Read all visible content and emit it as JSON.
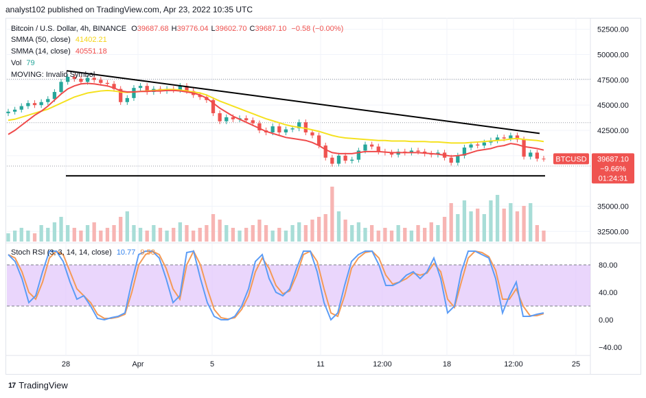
{
  "header": {
    "text": "analyst102 published on TradingView.com, Apr 23, 2022 10:35 UTC"
  },
  "legend": {
    "symbol": "Bitcoin / U.S. Dollar, 4h, BINANCE",
    "ohlc": [
      {
        "key": "O",
        "val": "39687.68"
      },
      {
        "key": "H",
        "val": "39776.04"
      },
      {
        "key": "L",
        "val": "39602.70"
      },
      {
        "key": "C",
        "val": "39687.10"
      }
    ],
    "change": "−0.58 (−0.00%)",
    "smma50_label": "SMMA (50, close)",
    "smma50_value": "41402.21",
    "smma14_label": "SMMA (14, close)",
    "smma14_value": "40551.18",
    "vol_label": "Vol",
    "vol_value": "79",
    "moving_label": "MOVING: Invalid Symbol"
  },
  "price_badge": {
    "symbol": "BTCUSD",
    "price": "39687.10",
    "change": "−9.66%",
    "countdown": "01:24:31"
  },
  "stoch": {
    "label": "Stoch RSI (3, 3, 14, 14, close)",
    "k_value": "10.77",
    "d_value": "9.58"
  },
  "colors": {
    "up": "#26a69a",
    "down": "#ef5350",
    "smma50": "#f5e11f",
    "smma14": "#ef4a4a",
    "k": "#5b9cf6",
    "d": "#f49a56",
    "band": "#e1c4fb",
    "trend": "#000000"
  },
  "footer": {
    "brand": "TradingView"
  },
  "chart_data": {
    "type": "candlestick",
    "symbol": "BTCUSD",
    "timeframe": "4h",
    "price_axis": {
      "labels": [
        "52500.00",
        "50000.00",
        "47500.00",
        "45000.00",
        "42500.00",
        "40000.00",
        "35000.00",
        "32500.00"
      ],
      "range": [
        31500,
        53500
      ]
    },
    "time_axis": {
      "labels": [
        "28",
        "Apr",
        "5",
        "11",
        "12:00",
        "18",
        "12:00",
        "25"
      ]
    },
    "closes": [
      44350,
      44550,
      44900,
      45200,
      45000,
      45300,
      45600,
      46300,
      47300,
      47800,
      47600,
      47300,
      47700,
      47500,
      47200,
      47100,
      46600,
      45300,
      45700,
      46700,
      46900,
      46300,
      46600,
      46400,
      46600,
      46500,
      46900,
      46400,
      46000,
      45800,
      45500,
      44200,
      43400,
      43800,
      43600,
      43700,
      43500,
      43200,
      42500,
      42300,
      42900,
      42300,
      42600,
      42700,
      43300,
      42300,
      42000,
      41000,
      39800,
      39200,
      40000,
      39500,
      39600,
      40500,
      41100,
      40900,
      40400,
      40300,
      40100,
      40400,
      40300,
      40500,
      40400,
      40200,
      40100,
      40300,
      39800,
      39300,
      40000,
      40800,
      41100,
      41000,
      41300,
      41500,
      41800,
      41700,
      42000,
      41600,
      39900,
      40300,
      39700,
      39690
    ],
    "volume_relative": [
      0.15,
      0.2,
      0.25,
      0.2,
      0.15,
      0.3,
      0.25,
      0.35,
      0.45,
      0.3,
      0.25,
      0.2,
      0.3,
      0.35,
      0.2,
      0.25,
      0.3,
      0.45,
      0.55,
      0.3,
      0.25,
      0.2,
      0.3,
      0.25,
      0.2,
      0.25,
      0.35,
      0.3,
      0.2,
      0.25,
      0.3,
      0.5,
      0.4,
      0.3,
      0.25,
      0.2,
      0.25,
      0.3,
      0.4,
      0.3,
      0.2,
      0.25,
      0.2,
      0.3,
      0.35,
      0.3,
      0.4,
      0.45,
      0.5,
      1.0,
      0.55,
      0.4,
      0.3,
      0.35,
      0.25,
      0.3,
      0.2,
      0.25,
      0.2,
      0.3,
      0.25,
      0.2,
      0.3,
      0.25,
      0.35,
      0.3,
      0.45,
      0.7,
      0.5,
      0.75,
      0.55,
      0.6,
      0.5,
      0.75,
      0.85,
      0.6,
      0.7,
      0.55,
      0.65,
      0.7,
      0.3,
      0.2
    ],
    "smma50": [
      43500,
      43600,
      43800,
      44000,
      44200,
      44400,
      44600,
      44900,
      45200,
      45500,
      45800,
      46000,
      46200,
      46300,
      46400,
      46450,
      46400,
      46300,
      46250,
      46300,
      46350,
      46400,
      46450,
      46500,
      46550,
      46550,
      46500,
      46400,
      46300,
      46200,
      46000,
      45700,
      45400,
      45150,
      44900,
      44650,
      44400,
      44150,
      43900,
      43650,
      43450,
      43250,
      43050,
      42900,
      42800,
      42700,
      42550,
      42400,
      42200,
      42000,
      41850,
      41750,
      41700,
      41650,
      41600,
      41550,
      41500,
      41500,
      41450,
      41450,
      41450,
      41400,
      41400,
      41400,
      41350,
      41350,
      41300,
      41250,
      41250,
      41250,
      41300,
      41350,
      41400,
      41450,
      41500,
      41550,
      41650,
      41700,
      41600,
      41550,
      41500,
      41400
    ],
    "smma14": [
      42100,
      42500,
      43000,
      43500,
      44000,
      44400,
      44900,
      45500,
      46100,
      46600,
      46900,
      47100,
      47150,
      47100,
      47000,
      46900,
      46700,
      46400,
      46300,
      46300,
      46350,
      46350,
      46400,
      46400,
      46450,
      46450,
      46400,
      46300,
      46200,
      46000,
      45700,
      45200,
      44700,
      44300,
      43900,
      43600,
      43300,
      43000,
      42700,
      42400,
      42200,
      42000,
      41800,
      41700,
      41600,
      41500,
      41300,
      41000,
      40600,
      40300,
      40200,
      40200,
      40200,
      40300,
      40400,
      40400,
      40400,
      40350,
      40300,
      40300,
      40300,
      40300,
      40300,
      40250,
      40200,
      40150,
      40050,
      39950,
      40000,
      40100,
      40300,
      40500,
      40600,
      40700,
      40900,
      41000,
      41200,
      41100,
      40900,
      40800,
      40700,
      40551
    ],
    "stoch_rsi": {
      "k": [
        95,
        85,
        60,
        25,
        35,
        70,
        100,
        100,
        85,
        55,
        30,
        35,
        20,
        2,
        0,
        3,
        5,
        10,
        55,
        95,
        100,
        100,
        90,
        60,
        25,
        35,
        98,
        100,
        60,
        25,
        5,
        0,
        0,
        5,
        20,
        45,
        85,
        95,
        60,
        40,
        35,
        45,
        75,
        100,
        100,
        70,
        25,
        0,
        10,
        50,
        85,
        95,
        100,
        100,
        80,
        50,
        50,
        55,
        65,
        70,
        60,
        70,
        90,
        60,
        10,
        20,
        70,
        100,
        100,
        95,
        90,
        60,
        10,
        35,
        55,
        5,
        5,
        8,
        10
      ],
      "d": [
        95,
        90,
        70,
        40,
        30,
        55,
        90,
        100,
        95,
        70,
        45,
        35,
        25,
        8,
        2,
        2,
        4,
        8,
        40,
        80,
        95,
        100,
        95,
        75,
        45,
        30,
        80,
        100,
        80,
        45,
        15,
        3,
        1,
        3,
        15,
        35,
        70,
        90,
        75,
        50,
        38,
        42,
        65,
        95,
        100,
        85,
        45,
        10,
        5,
        35,
        75,
        90,
        98,
        100,
        90,
        65,
        52,
        55,
        60,
        68,
        65,
        68,
        82,
        70,
        30,
        18,
        55,
        90,
        100,
        98,
        92,
        72,
        30,
        30,
        45,
        20,
        6,
        6,
        9
      ]
    },
    "stoch_axis": {
      "labels": [
        "80.00",
        "40.00",
        "0.00",
        "−40.00"
      ],
      "range": [
        -50,
        110
      ]
    },
    "annotations": {
      "descending_trendline": [
        [
          0,
          48400
        ],
        [
          81,
          42200
        ]
      ],
      "horizontal_support": 38000
    }
  }
}
